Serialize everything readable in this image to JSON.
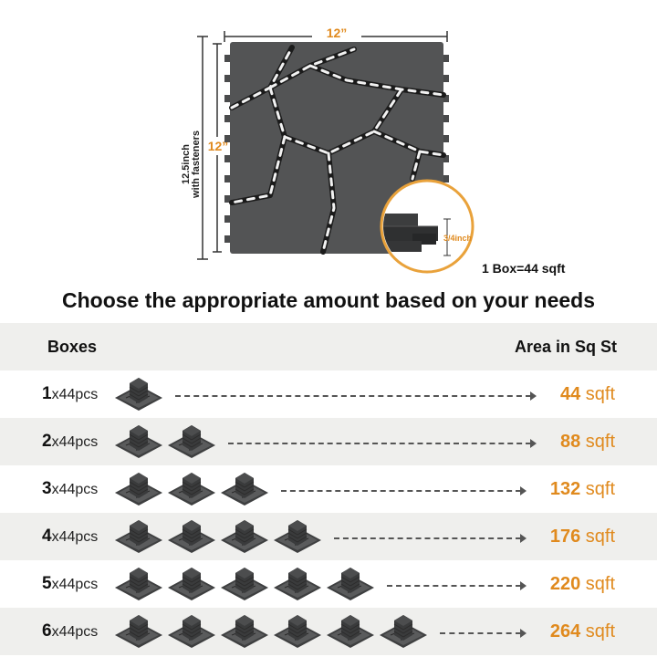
{
  "illustration": {
    "width_label": "12”",
    "height_label": "12”",
    "outer_label_line1": "12.5inch",
    "outer_label_line2": "with fasteners",
    "thickness_label": "3/4inch",
    "tile_color": "#545556",
    "accent_color": "#e08a1e"
  },
  "box_note": "1 Box=44 sqft",
  "headline": "Choose the appropriate amount based on your needs",
  "table": {
    "header_boxes": "Boxes",
    "header_area": "Area in Sq St",
    "rows": [
      {
        "count": "1",
        "unit": "x44pcs",
        "icon_count": 1,
        "area_value": "44",
        "area_unit": " sqft"
      },
      {
        "count": "2",
        "unit": "x44pcs",
        "icon_count": 2,
        "area_value": "88",
        "area_unit": " sqft"
      },
      {
        "count": "3",
        "unit": "x44pcs",
        "icon_count": 3,
        "area_value": "132",
        "area_unit": " sqft"
      },
      {
        "count": "4",
        "unit": "x44pcs",
        "icon_count": 4,
        "area_value": "176",
        "area_unit": " sqft"
      },
      {
        "count": "5",
        "unit": "x44pcs",
        "icon_count": 5,
        "area_value": "220",
        "area_unit": " sqft"
      },
      {
        "count": "6",
        "unit": "x44pcs",
        "icon_count": 6,
        "area_value": "264",
        "area_unit": " sqft"
      }
    ]
  }
}
